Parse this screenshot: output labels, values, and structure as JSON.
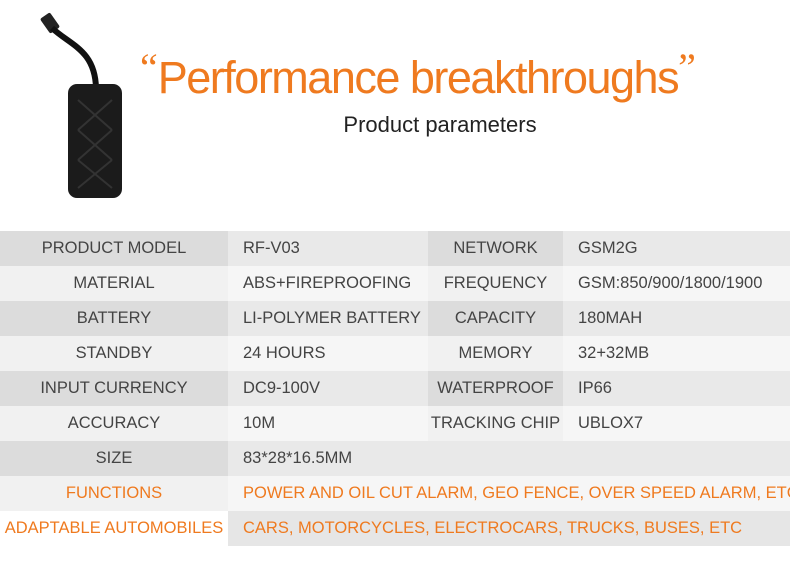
{
  "header": {
    "quote_open": "“",
    "title": "Performance breakthroughs",
    "quote_close": "”",
    "subtitle": "Product parameters"
  },
  "table": {
    "rows": [
      [
        "PRODUCT MODEL",
        "RF-V03",
        "NETWORK",
        "GSM2G"
      ],
      [
        "MATERIAL",
        "ABS+FIREPROOFING",
        "FREQUENCY",
        "GSM:850/900/1800/1900"
      ],
      [
        "BATTERY",
        "LI-POLYMER BATTERY",
        "CAPACITY",
        "180MAH"
      ],
      [
        "STANDBY",
        "24 HOURS",
        "MEMORY",
        "32+32MB"
      ],
      [
        "INPUT CURRENCY",
        "DC9-100V",
        "WATERPROOF",
        "IP66"
      ],
      [
        "ACCURACY",
        "10M",
        "TRACKING CHIP",
        "UBLOX7"
      ],
      [
        "SIZE",
        "83*28*16.5MM"
      ],
      [
        "FUNCTIONS",
        "POWER AND OIL CUT ALARM, GEO FENCE, OVER SPEED ALARM, ETC."
      ],
      [
        "ADAPTABLE AUTOMOBILES",
        "CARS, MOTORCYCLES, ELECTROCARS, TRUCKS, BUSES, ETC"
      ]
    ]
  }
}
